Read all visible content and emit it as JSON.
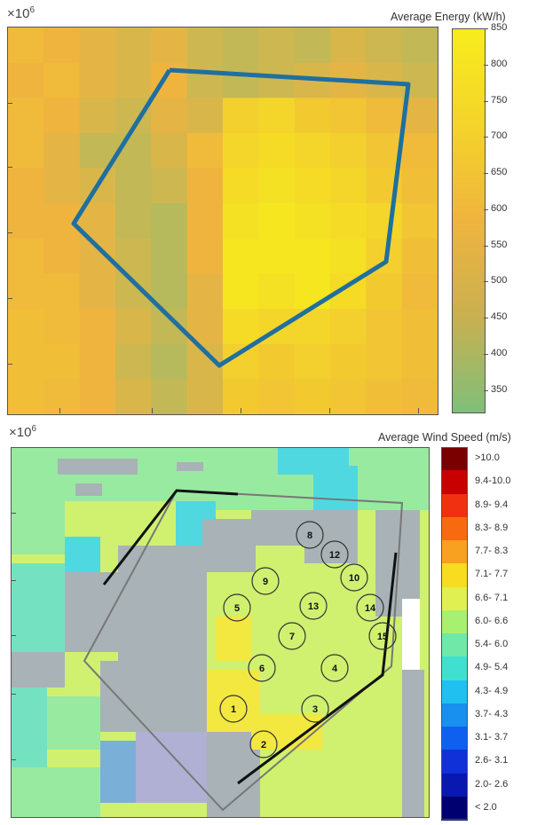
{
  "top_chart": {
    "exponent_base": "×10",
    "exponent_power": "6",
    "colorbar_title": "Average Energy (kW/h)",
    "colorbar_ticks": [
      850,
      800,
      750,
      700,
      650,
      600,
      550,
      500,
      450,
      400,
      350
    ],
    "colors": {
      "low": "#7fbf7a",
      "mid": "#f0b43a",
      "high": "#f5e81a",
      "outline": "#1f6fa0"
    }
  },
  "bottom_chart": {
    "exponent_base": "×10",
    "exponent_power": "6",
    "colorbar_title": "Average Wind Speed (m/s)",
    "legend": [
      {
        "label": ">10.0",
        "color": "#7a0000"
      },
      {
        "label": "9.4-10.0",
        "color": "#c80000"
      },
      {
        "label": "8.9- 9.4",
        "color": "#f03010"
      },
      {
        "label": "8.3- 8.9",
        "color": "#f86a10"
      },
      {
        "label": "7.7- 8.3",
        "color": "#f8a020"
      },
      {
        "label": "7.1- 7.7",
        "color": "#f8dc20"
      },
      {
        "label": "6.6- 7.1",
        "color": "#e0f050"
      },
      {
        "label": "6.0- 6.6",
        "color": "#a8f070"
      },
      {
        "label": "5.4- 6.0",
        "color": "#70e8a8"
      },
      {
        "label": "4.9- 5.4",
        "color": "#40e0d0"
      },
      {
        "label": "4.3- 4.9",
        "color": "#20c0f0"
      },
      {
        "label": "3.7- 4.3",
        "color": "#1890f0"
      },
      {
        "label": "3.1- 3.7",
        "color": "#1060f0"
      },
      {
        "label": "2.6- 3.1",
        "color": "#1030d8"
      },
      {
        "label": "2.0- 2.6",
        "color": "#0818b0"
      },
      {
        "label": "< 2.0",
        "color": "#000070"
      }
    ],
    "turbines": [
      "1",
      "2",
      "3",
      "4",
      "5",
      "6",
      "7",
      "8",
      "9",
      "10",
      "12",
      "13",
      "14",
      "15"
    ]
  },
  "chart_data": [
    {
      "type": "heatmap",
      "title": "",
      "colorbar_label": "Average Energy (kW/h)",
      "colorbar_range": [
        320,
        850
      ],
      "colorbar_ticks": [
        350,
        400,
        450,
        500,
        550,
        600,
        650,
        700,
        750,
        800,
        850
      ],
      "overlay": "polygon outline"
    },
    {
      "type": "heatmap",
      "title": "",
      "colorbar_label": "Average Wind Speed (m/s)",
      "classes": [
        ">10.0",
        "9.4-10.0",
        "8.9- 9.4",
        "8.3- 8.9",
        "7.7- 8.3",
        "7.1- 7.7",
        "6.6- 7.1",
        "6.0- 6.6",
        "5.4- 6.0",
        "4.9- 5.4",
        "4.3- 4.9",
        "3.7- 4.3",
        "3.1- 3.7",
        "2.6- 3.1",
        "2.0- 2.6",
        "< 2.0"
      ],
      "turbine_labels": [
        "1",
        "2",
        "3",
        "4",
        "5",
        "6",
        "7",
        "8",
        "9",
        "10",
        "12",
        "13",
        "14",
        "15"
      ]
    }
  ]
}
